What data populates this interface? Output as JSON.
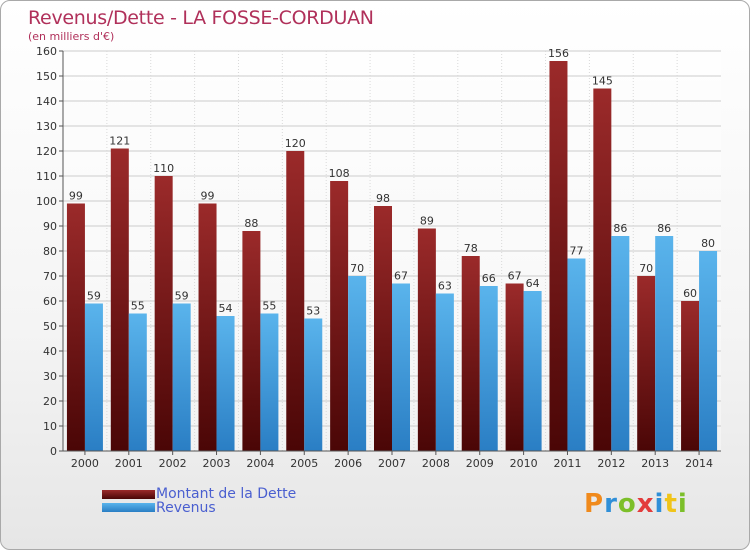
{
  "title": "Revenus/Dette - LA FOSSE-CORDUAN",
  "subtitle": "(en milliers d'€)",
  "logo_text": "Proxiti",
  "colors": {
    "debt_top": "#9b2a2a",
    "debt_bottom": "#4a0606",
    "revenue_top": "#5ab4ec",
    "revenue_bottom": "#2a7ec4",
    "title": "#b0305a",
    "legend_text": "#4a5fd0"
  },
  "chart_data": {
    "type": "bar",
    "title": "Revenus/Dette - LA FOSSE-CORDUAN",
    "ylabel": "(en milliers d'€)",
    "xlabel": "",
    "categories": [
      "2000",
      "2001",
      "2002",
      "2003",
      "2004",
      "2005",
      "2006",
      "2007",
      "2008",
      "2009",
      "2010",
      "2011",
      "2012",
      "2013",
      "2014"
    ],
    "series": [
      {
        "name": "Montant de la Dette",
        "values": [
          99,
          121,
          110,
          99,
          88,
          120,
          108,
          98,
          89,
          78,
          67,
          156,
          145,
          70,
          60
        ]
      },
      {
        "name": "Revenus",
        "values": [
          59,
          55,
          59,
          54,
          55,
          53,
          70,
          67,
          63,
          66,
          64,
          77,
          86,
          86,
          80
        ]
      }
    ],
    "ylim": [
      0,
      160
    ],
    "ytick_step": 10,
    "grid": true,
    "legend_position": "bottom-left"
  }
}
